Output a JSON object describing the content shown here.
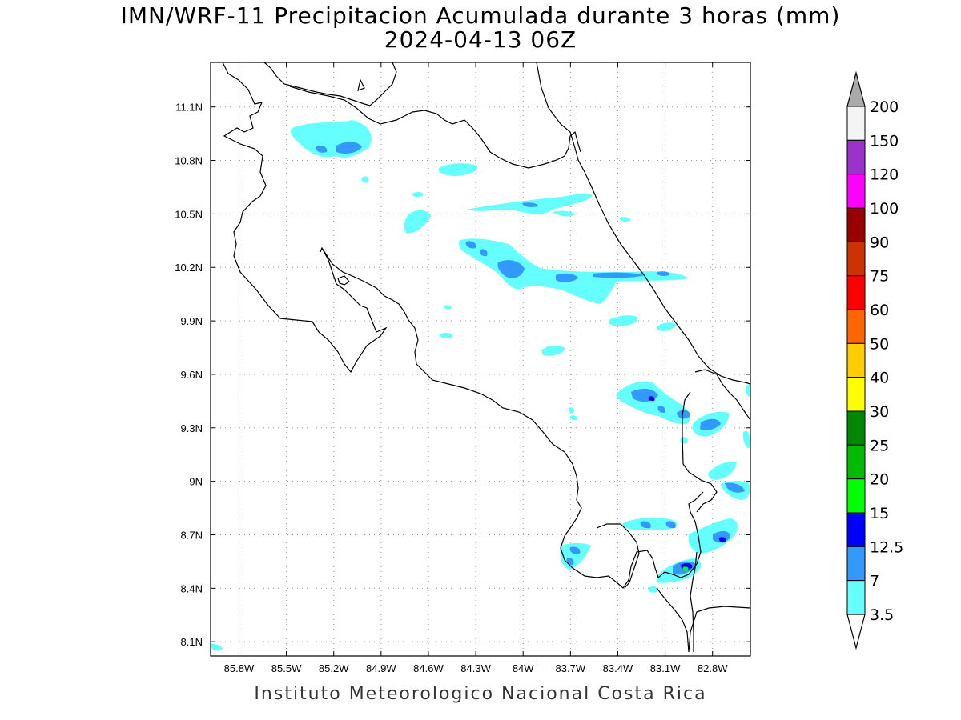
{
  "header": {
    "title": "IMN/WRF-11 Precipitacion Acumulada durante 3 horas (mm)",
    "subtitle": "2024-04-13 06Z"
  },
  "footer": {
    "credit": "Instituto Meteorologico Nacional Costa Rica"
  },
  "map": {
    "lon_range": [
      -85.98,
      -82.56
    ],
    "lat_range": [
      8.02,
      11.35
    ],
    "lon_ticks": [
      "85.8W",
      "85.5W",
      "85.2W",
      "84.9W",
      "84.6W",
      "84.3W",
      "84W",
      "83.7W",
      "83.4W",
      "83.1W",
      "82.8W"
    ],
    "lat_ticks": [
      "11.1N",
      "10.8N",
      "10.5N",
      "10.2N",
      "9.9N",
      "9.6N",
      "9.3N",
      "9N",
      "8.7N",
      "8.4N",
      "8.1N"
    ],
    "grid": true,
    "grid_style": "dotted"
  },
  "colorbar": {
    "labels": [
      "200",
      "150",
      "120",
      "100",
      "90",
      "75",
      "60",
      "50",
      "40",
      "30",
      "25",
      "20",
      "15",
      "12.5",
      "7",
      "3.5"
    ],
    "colors": [
      "#f4f4f4",
      "#9933cc",
      "#ff00ff",
      "#990000",
      "#cc3300",
      "#ff0000",
      "#ff6600",
      "#ffcc00",
      "#ffff00",
      "#008800",
      "#00bb00",
      "#00ff00",
      "#0000ff",
      "#3399ff",
      "#66ffff"
    ],
    "over_color": "#aaaaaa",
    "under_color": "#ffffff",
    "units": "mm"
  },
  "legend_colors": {
    "light": "#66ffff",
    "medium": "#3399ff",
    "heavy": "#0000ff",
    "peak": "#00ff00"
  }
}
